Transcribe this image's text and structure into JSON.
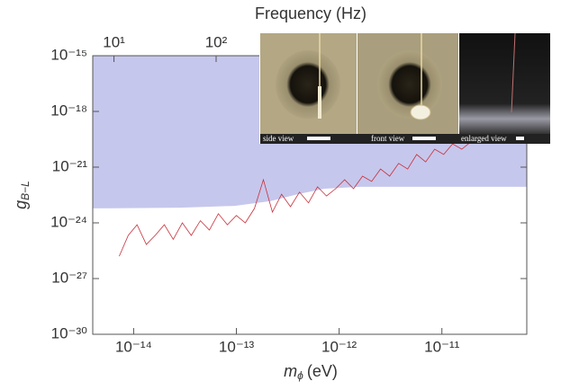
{
  "chart_data": {
    "type": "line",
    "title": "Frequency (Hz)",
    "x_label": {
      "base": "m",
      "sub": "ϕ",
      "unit": "(eV)"
    },
    "y_label": {
      "base": "g",
      "sub": "B−L"
    },
    "xscale": "log",
    "yscale": "log",
    "x2scale": "log",
    "xlim": [
      4e-15,
      6.7e-11
    ],
    "ylim": [
      1e-30,
      1e-15
    ],
    "x2lim": [
      6.2,
      110000
    ],
    "xticks": [
      {
        "value": 1e-14,
        "label": "10⁻¹⁴"
      },
      {
        "value": 1e-13,
        "label": "10⁻¹³"
      },
      {
        "value": 1e-12,
        "label": "10⁻¹²"
      },
      {
        "value": 1e-11,
        "label": "10⁻¹¹"
      }
    ],
    "yticks": [
      {
        "value": 1e-30,
        "label": "10⁻³⁰"
      },
      {
        "value": 1e-27,
        "label": "10⁻²⁷"
      },
      {
        "value": 1e-24,
        "label": "10⁻²⁴"
      },
      {
        "value": 1e-21,
        "label": "10⁻²¹"
      },
      {
        "value": 1e-18,
        "label": "10⁻¹⁸"
      },
      {
        "value": 1e-15,
        "label": "10⁻¹⁵"
      }
    ],
    "x2ticks": [
      {
        "value": 10,
        "label": "10¹"
      },
      {
        "value": 100,
        "label": "10²"
      }
    ],
    "series": [
      {
        "color": "#c6c7ec",
        "fill": "above",
        "x": [
          4e-15,
          2.86e-14,
          9.6e-14,
          2.15e-13,
          3.94e-13,
          7.2e-13,
          1.62e-12,
          6.7e-11
        ],
        "values": [
          6e-24,
          6.6e-24,
          8.2e-24,
          1.5e-23,
          3.5e-23,
          6.9e-23,
          8.7e-23,
          8.7e-23
        ]
      },
      {
        "color": "#c8303a",
        "x": [
          7.24e-15,
          8.85e-15,
          1.08e-14,
          1.33e-14,
          1.62e-14,
          1.99e-14,
          2.43e-14,
          2.98e-14,
          3.64e-14,
          4.46e-14,
          5.46e-14,
          6.68e-14,
          8.17e-14,
          1e-13,
          1.22e-13,
          1.5e-13,
          1.83e-13,
          2.24e-13,
          2.75e-13,
          3.36e-13,
          4.11e-13,
          5.03e-13,
          6.16e-13,
          7.54e-13,
          9.23e-13,
          1.13e-12,
          1.38e-12,
          1.69e-12,
          2.07e-12,
          2.53e-12,
          3.1e-12,
          3.79e-12,
          4.64e-12,
          5.68e-12,
          6.95e-12,
          8.51e-12,
          1.04e-11,
          1.27e-11,
          1.56e-11,
          1.91e-11
        ],
        "values": [
          1.6e-26,
          2.1e-25,
          7.9e-25,
          6.9e-26,
          2.1e-25,
          7.9e-25,
          1.3e-25,
          1e-24,
          2.1e-25,
          1.3e-24,
          4.1e-25,
          3.1e-24,
          7.9e-25,
          2.5e-24,
          1e-24,
          6e-24,
          2.1e-22,
          3.8e-24,
          3.5e-23,
          7.4e-24,
          4.5e-23,
          1.2e-23,
          8.7e-23,
          2.8e-23,
          6.9e-23,
          2.1e-22,
          6.9e-23,
          3.3e-22,
          1.7e-22,
          7.9e-22,
          3.3e-22,
          1.6e-21,
          7.9e-22,
          4.8e-21,
          1.9e-21,
          9.3e-21,
          4.8e-21,
          1.8e-20,
          9.3e-21,
          2.3e-20
        ]
      }
    ],
    "annotations": [
      "side view",
      "front view",
      "enlarged view"
    ]
  }
}
